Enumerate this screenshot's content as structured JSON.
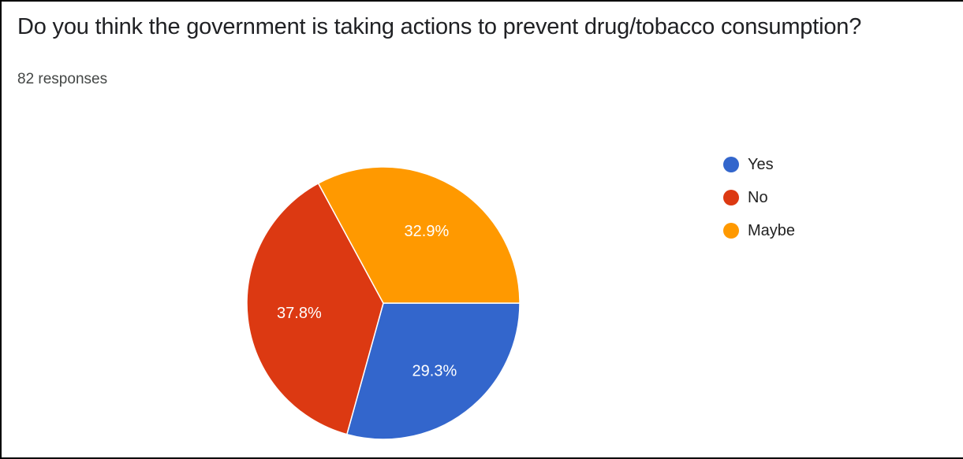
{
  "chart_data": {
    "type": "pie",
    "title": "Do you think the government is taking actions to prevent drug/tobacco consumption?",
    "subtitle": "82 responses",
    "slices": [
      {
        "label": "Yes",
        "value": 29.3,
        "display": "29.3%",
        "color": "#3366cc"
      },
      {
        "label": "No",
        "value": 37.8,
        "display": "37.8%",
        "color": "#dc3912"
      },
      {
        "label": "Maybe",
        "value": 32.9,
        "display": "32.9%",
        "color": "#ff9900"
      }
    ],
    "legend_position": "right"
  }
}
